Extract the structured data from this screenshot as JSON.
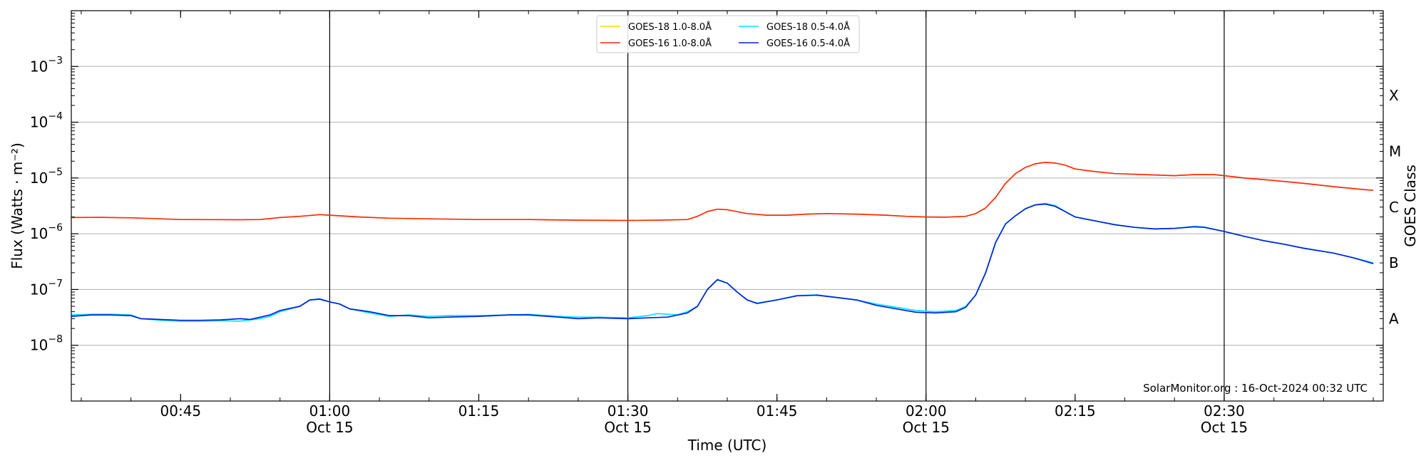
{
  "chart_data": {
    "type": "line",
    "xlabel": "Time (UTC)",
    "ylabel": "Flux (Watts · m⁻²)",
    "ylabel_right": "GOES Class",
    "credit": "SolarMonitor.org : 16-Oct-2024 00:32 UTC",
    "y_scale": "log",
    "ylim": [
      1e-09,
      0.01
    ],
    "xlim": [
      "00:34",
      "02:46"
    ],
    "grid": "horizontal",
    "legend_placement": "top-center",
    "y_ticks": [
      {
        "value": -8,
        "base": "10",
        "exp": "−8"
      },
      {
        "value": -7,
        "base": "10",
        "exp": "−7"
      },
      {
        "value": -6,
        "base": "10",
        "exp": "−6"
      },
      {
        "value": -5,
        "base": "10",
        "exp": "−5"
      },
      {
        "value": -4,
        "base": "10",
        "exp": "−4"
      },
      {
        "value": -3,
        "base": "10",
        "exp": "−3"
      }
    ],
    "x_ticks": [
      {
        "time": "00:45",
        "label": "00:45",
        "date": ""
      },
      {
        "time": "01:00",
        "label": "01:00",
        "date": "Oct 15"
      },
      {
        "time": "01:15",
        "label": "01:15",
        "date": ""
      },
      {
        "time": "01:30",
        "label": "01:30",
        "date": "Oct 15"
      },
      {
        "time": "01:45",
        "label": "01:45",
        "date": ""
      },
      {
        "time": "02:00",
        "label": "02:00",
        "date": "Oct 15"
      },
      {
        "time": "02:15",
        "label": "02:15",
        "date": ""
      },
      {
        "time": "02:30",
        "label": "02:30",
        "date": "Oct 15"
      }
    ],
    "vlines": [
      "01:00",
      "01:30",
      "02:00",
      "02:30"
    ],
    "goes_classes": [
      {
        "label": "A",
        "flux": 3e-08
      },
      {
        "label": "B",
        "flux": 3e-07
      },
      {
        "label": "C",
        "flux": 3e-06
      },
      {
        "label": "M",
        "flux": 3e-05
      },
      {
        "label": "X",
        "flux": 0.0003
      }
    ],
    "series": [
      {
        "name": "GOES-18 1.0-8.0Å",
        "color": "#ffd700",
        "points": []
      },
      {
        "name": "GOES-16 1.0-8.0Å",
        "color": "#ff2a00",
        "points": [
          [
            "00:34",
            1.95e-06
          ],
          [
            "00:37",
            1.97e-06
          ],
          [
            "00:40",
            1.93e-06
          ],
          [
            "00:42",
            1.88e-06
          ],
          [
            "00:45",
            1.8e-06
          ],
          [
            "00:48",
            1.79e-06
          ],
          [
            "00:51",
            1.78e-06
          ],
          [
            "00:53",
            1.8e-06
          ],
          [
            "00:55",
            1.95e-06
          ],
          [
            "00:57",
            2.05e-06
          ],
          [
            "00:59",
            2.2e-06
          ],
          [
            "01:00",
            2.15e-06
          ],
          [
            "01:03",
            2e-06
          ],
          [
            "01:06",
            1.9e-06
          ],
          [
            "01:10",
            1.85e-06
          ],
          [
            "01:15",
            1.8e-06
          ],
          [
            "01:20",
            1.8e-06
          ],
          [
            "01:25",
            1.75e-06
          ],
          [
            "01:30",
            1.73e-06
          ],
          [
            "01:33",
            1.75e-06
          ],
          [
            "01:36",
            1.8e-06
          ],
          [
            "01:37",
            2.05e-06
          ],
          [
            "01:38",
            2.5e-06
          ],
          [
            "01:39",
            2.75e-06
          ],
          [
            "01:40",
            2.7e-06
          ],
          [
            "01:42",
            2.3e-06
          ],
          [
            "01:44",
            2.15e-06
          ],
          [
            "01:46",
            2.15e-06
          ],
          [
            "01:48",
            2.25e-06
          ],
          [
            "01:50",
            2.3e-06
          ],
          [
            "01:53",
            2.25e-06
          ],
          [
            "01:56",
            2.15e-06
          ],
          [
            "01:58",
            2.05e-06
          ],
          [
            "02:00",
            2e-06
          ],
          [
            "02:02",
            1.98e-06
          ],
          [
            "02:04",
            2.05e-06
          ],
          [
            "02:05",
            2.3e-06
          ],
          [
            "02:06",
            2.9e-06
          ],
          [
            "02:07",
            4.5e-06
          ],
          [
            "02:08",
            8e-06
          ],
          [
            "02:09",
            1.2e-05
          ],
          [
            "02:10",
            1.55e-05
          ],
          [
            "02:11",
            1.8e-05
          ],
          [
            "02:12",
            1.9e-05
          ],
          [
            "02:13",
            1.85e-05
          ],
          [
            "02:14",
            1.7e-05
          ],
          [
            "02:15",
            1.45e-05
          ],
          [
            "02:17",
            1.3e-05
          ],
          [
            "02:19",
            1.2e-05
          ],
          [
            "02:22",
            1.15e-05
          ],
          [
            "02:25",
            1.1e-05
          ],
          [
            "02:27",
            1.15e-05
          ],
          [
            "02:29",
            1.15e-05
          ],
          [
            "02:30",
            1.1e-05
          ],
          [
            "02:32",
            1e-05
          ],
          [
            "02:35",
            9e-06
          ],
          [
            "02:38",
            8e-06
          ],
          [
            "02:41",
            7e-06
          ],
          [
            "02:44",
            6.2e-06
          ],
          [
            "02:45",
            6e-06
          ]
        ]
      },
      {
        "name": "GOES-18 0.5-4.0Å",
        "color": "#00e5ff",
        "points": [
          [
            "00:34",
            3.5e-08
          ],
          [
            "00:36",
            3.6e-08
          ],
          [
            "00:38",
            3.6e-08
          ],
          [
            "00:40",
            3.5e-08
          ],
          [
            "00:41",
            3e-08
          ],
          [
            "00:43",
            2.8e-08
          ],
          [
            "00:45",
            2.7e-08
          ],
          [
            "00:47",
            2.7e-08
          ],
          [
            "00:49",
            2.75e-08
          ],
          [
            "00:51",
            2.7e-08
          ],
          [
            "00:53",
            3e-08
          ],
          [
            "00:54",
            3.3e-08
          ],
          [
            "00:55",
            4e-08
          ],
          [
            "00:57",
            5e-08
          ],
          [
            "00:58",
            6.5e-08
          ],
          [
            "00:59",
            6.8e-08
          ],
          [
            "01:00",
            6e-08
          ],
          [
            "01:01",
            5.5e-08
          ],
          [
            "01:02",
            4.5e-08
          ],
          [
            "01:04",
            3.8e-08
          ],
          [
            "01:06",
            3.3e-08
          ],
          [
            "01:08",
            3.5e-08
          ],
          [
            "01:10",
            3.3e-08
          ],
          [
            "01:12",
            3.4e-08
          ],
          [
            "01:15",
            3.4e-08
          ],
          [
            "01:18",
            3.5e-08
          ],
          [
            "01:20",
            3.6e-08
          ],
          [
            "01:23",
            3.3e-08
          ],
          [
            "01:25",
            3.2e-08
          ],
          [
            "01:27",
            3.2e-08
          ],
          [
            "01:30",
            3.1e-08
          ],
          [
            "01:32",
            3.4e-08
          ],
          [
            "01:33",
            3.7e-08
          ],
          [
            "01:35",
            3.5e-08
          ],
          [
            "01:36",
            4e-08
          ],
          [
            "01:37",
            5e-08
          ],
          [
            "01:38",
            1e-07
          ],
          [
            "01:39",
            1.5e-07
          ],
          [
            "01:40",
            1.3e-07
          ],
          [
            "01:41",
            9e-08
          ],
          [
            "01:42",
            6.5e-08
          ],
          [
            "01:43",
            5.7e-08
          ],
          [
            "01:45",
            6.5e-08
          ],
          [
            "01:47",
            7.8e-08
          ],
          [
            "01:49",
            8e-08
          ],
          [
            "01:51",
            7.2e-08
          ],
          [
            "01:53",
            6.5e-08
          ],
          [
            "01:55",
            5.5e-08
          ],
          [
            "01:57",
            4.8e-08
          ],
          [
            "01:59",
            4.2e-08
          ],
          [
            "02:01",
            4e-08
          ],
          [
            "02:03",
            4.2e-08
          ],
          [
            "02:04",
            5e-08
          ],
          [
            "02:05",
            8e-08
          ],
          [
            "02:06",
            2e-07
          ],
          [
            "02:07",
            7e-07
          ],
          [
            "02:08",
            1.5e-06
          ],
          [
            "02:09",
            2.1e-06
          ],
          [
            "02:10",
            2.8e-06
          ],
          [
            "02:11",
            3.3e-06
          ],
          [
            "02:12",
            3.5e-06
          ],
          [
            "02:13",
            3.2e-06
          ],
          [
            "02:14",
            2.5e-06
          ],
          [
            "02:15",
            2e-06
          ],
          [
            "02:17",
            1.7e-06
          ],
          [
            "02:19",
            1.45e-06
          ],
          [
            "02:21",
            1.3e-06
          ],
          [
            "02:23",
            1.22e-06
          ],
          [
            "02:25",
            1.25e-06
          ],
          [
            "02:27",
            1.35e-06
          ],
          [
            "02:28",
            1.32e-06
          ],
          [
            "02:30",
            1.1e-06
          ],
          [
            "02:32",
            9e-07
          ],
          [
            "02:34",
            7.5e-07
          ],
          [
            "02:36",
            6.5e-07
          ],
          [
            "02:38",
            5.5e-07
          ],
          [
            "02:41",
            4.5e-07
          ],
          [
            "02:43",
            3.7e-07
          ],
          [
            "02:45",
            3e-07
          ]
        ]
      },
      {
        "name": "GOES-16 0.5-4.0Å",
        "color": "#0022dd",
        "points": [
          [
            "00:34",
            3.3e-08
          ],
          [
            "00:36",
            3.5e-08
          ],
          [
            "00:38",
            3.5e-08
          ],
          [
            "00:40",
            3.4e-08
          ],
          [
            "00:41",
            3e-08
          ],
          [
            "00:43",
            2.9e-08
          ],
          [
            "00:45",
            2.8e-08
          ],
          [
            "00:47",
            2.8e-08
          ],
          [
            "00:49",
            2.85e-08
          ],
          [
            "00:51",
            3e-08
          ],
          [
            "00:52",
            2.9e-08
          ],
          [
            "00:54",
            3.5e-08
          ],
          [
            "00:55",
            4.2e-08
          ],
          [
            "00:57",
            5e-08
          ],
          [
            "00:58",
            6.5e-08
          ],
          [
            "00:59",
            6.7e-08
          ],
          [
            "01:00",
            6e-08
          ],
          [
            "01:01",
            5.5e-08
          ],
          [
            "01:02",
            4.5e-08
          ],
          [
            "01:04",
            4e-08
          ],
          [
            "01:06",
            3.4e-08
          ],
          [
            "01:08",
            3.4e-08
          ],
          [
            "01:10",
            3.1e-08
          ],
          [
            "01:12",
            3.2e-08
          ],
          [
            "01:15",
            3.3e-08
          ],
          [
            "01:18",
            3.5e-08
          ],
          [
            "01:20",
            3.5e-08
          ],
          [
            "01:23",
            3.2e-08
          ],
          [
            "01:25",
            3e-08
          ],
          [
            "01:27",
            3.1e-08
          ],
          [
            "01:30",
            3e-08
          ],
          [
            "01:32",
            3.1e-08
          ],
          [
            "01:34",
            3.2e-08
          ],
          [
            "01:36",
            3.8e-08
          ],
          [
            "01:37",
            5e-08
          ],
          [
            "01:38",
            1e-07
          ],
          [
            "01:39",
            1.5e-07
          ],
          [
            "01:40",
            1.3e-07
          ],
          [
            "01:41",
            9e-08
          ],
          [
            "01:42",
            6.5e-08
          ],
          [
            "01:43",
            5.6e-08
          ],
          [
            "01:45",
            6.5e-08
          ],
          [
            "01:47",
            7.7e-08
          ],
          [
            "01:49",
            7.9e-08
          ],
          [
            "01:51",
            7.2e-08
          ],
          [
            "01:53",
            6.5e-08
          ],
          [
            "01:55",
            5.2e-08
          ],
          [
            "01:57",
            4.5e-08
          ],
          [
            "01:59",
            3.9e-08
          ],
          [
            "02:01",
            3.8e-08
          ],
          [
            "02:03",
            4e-08
          ],
          [
            "02:04",
            4.8e-08
          ],
          [
            "02:05",
            8e-08
          ],
          [
            "02:06",
            2e-07
          ],
          [
            "02:07",
            7e-07
          ],
          [
            "02:08",
            1.5e-06
          ],
          [
            "02:09",
            2.1e-06
          ],
          [
            "02:10",
            2.8e-06
          ],
          [
            "02:11",
            3.3e-06
          ],
          [
            "02:12",
            3.4e-06
          ],
          [
            "02:13",
            3.1e-06
          ],
          [
            "02:14",
            2.5e-06
          ],
          [
            "02:15",
            2e-06
          ],
          [
            "02:17",
            1.7e-06
          ],
          [
            "02:19",
            1.45e-06
          ],
          [
            "02:21",
            1.3e-06
          ],
          [
            "02:23",
            1.22e-06
          ],
          [
            "02:25",
            1.25e-06
          ],
          [
            "02:27",
            1.33e-06
          ],
          [
            "02:28",
            1.3e-06
          ],
          [
            "02:30",
            1.1e-06
          ],
          [
            "02:32",
            9e-07
          ],
          [
            "02:34",
            7.5e-07
          ],
          [
            "02:36",
            6.5e-07
          ],
          [
            "02:38",
            5.5e-07
          ],
          [
            "02:41",
            4.5e-07
          ],
          [
            "02:43",
            3.7e-07
          ],
          [
            "02:45",
            2.9e-07
          ]
        ]
      }
    ]
  }
}
